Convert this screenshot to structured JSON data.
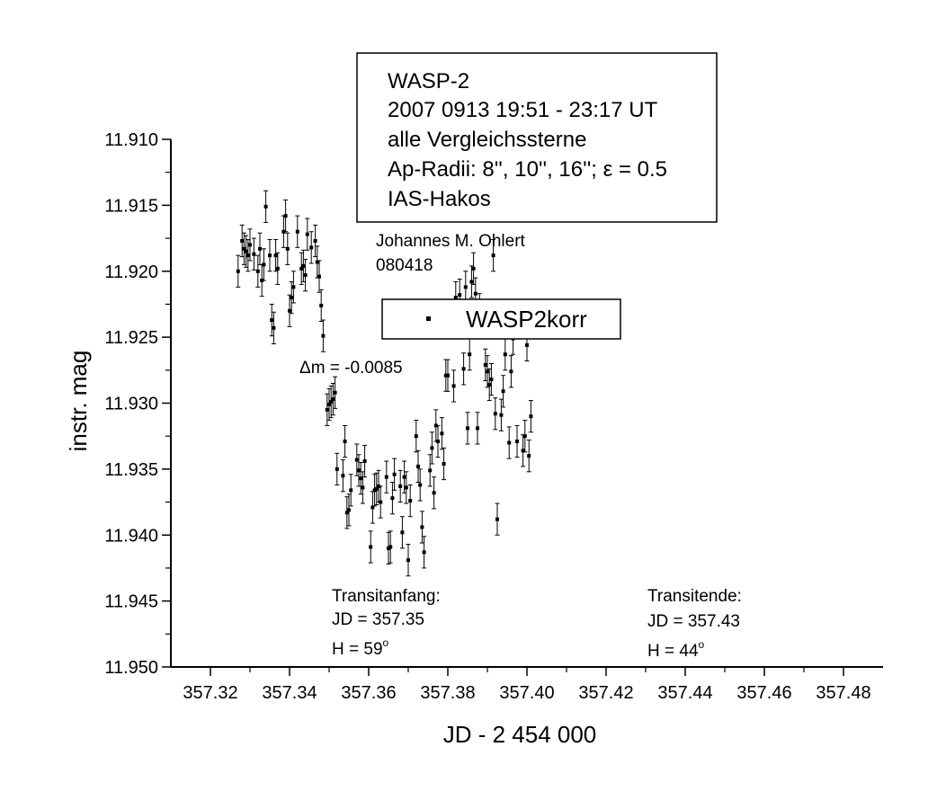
{
  "chart_data": {
    "type": "scatter",
    "xlabel": "JD - 2 454 000",
    "ylabel": "instr. mag",
    "xlim": [
      357.31,
      357.49
    ],
    "ylim": [
      11.95,
      11.91
    ],
    "y_inverted": true,
    "x_ticks": [
      "357.32",
      "357.34",
      "357.36",
      "357.38",
      "357.40",
      "357.42",
      "357.44",
      "357.46",
      "357.48"
    ],
    "y_ticks": [
      "11.910",
      "11.915",
      "11.920",
      "11.925",
      "11.930",
      "11.935",
      "11.940",
      "11.945",
      "11.950"
    ],
    "info_box": [
      "WASP-2",
      "2007 0913 19:51 - 23:17 UT",
      "alle Vergleichssterne",
      "Ap-Radii: 8'', 10'', 16''; ε = 0.5",
      "IAS-Hakos"
    ],
    "author": [
      "Johannes M. Ohlert",
      "080418"
    ],
    "legend": {
      "label": "WASP2korr",
      "placement": "upper-middle"
    },
    "offset_note": "Δm = -0.0085",
    "transit_start": {
      "label": "Transitanfang:",
      "jd": "JD = 357.35",
      "h": "H = 59",
      "deg": "o"
    },
    "transit_end": {
      "label": "Transitende:",
      "jd": "JD = 357.43",
      "h": "H = 44",
      "deg": "o"
    },
    "error_bar": 0.0012,
    "series": [
      {
        "name": "WASP2korr",
        "points": [
          [
            357.327,
            11.92
          ],
          [
            357.328,
            11.9177
          ],
          [
            357.3285,
            11.9183
          ],
          [
            357.329,
            11.9185
          ],
          [
            357.3295,
            11.9188
          ],
          [
            357.33,
            11.918
          ],
          [
            357.331,
            11.9187
          ],
          [
            357.332,
            11.92
          ],
          [
            357.3325,
            11.9183
          ],
          [
            357.333,
            11.9207
          ],
          [
            357.3335,
            11.9195
          ],
          [
            357.334,
            11.9151
          ],
          [
            357.335,
            11.9188
          ],
          [
            357.3355,
            11.9237
          ],
          [
            357.336,
            11.9243
          ],
          [
            357.3365,
            11.9188
          ],
          [
            357.337,
            11.9198
          ],
          [
            357.3385,
            11.917
          ],
          [
            357.339,
            11.9158
          ],
          [
            357.3395,
            11.9183
          ],
          [
            357.34,
            11.923
          ],
          [
            357.3405,
            11.922
          ],
          [
            357.341,
            11.9212
          ],
          [
            357.342,
            11.917
          ],
          [
            357.343,
            11.9198
          ],
          [
            357.3435,
            11.9196
          ],
          [
            357.344,
            11.9203
          ],
          [
            357.3445,
            11.9172
          ],
          [
            357.3455,
            11.9182
          ],
          [
            357.3465,
            11.9177
          ],
          [
            357.347,
            11.9193
          ],
          [
            357.3475,
            11.9204
          ],
          [
            357.348,
            11.9226
          ],
          [
            357.3485,
            11.9249
          ],
          [
            357.3495,
            11.9305
          ],
          [
            357.35,
            11.9301
          ],
          [
            357.3505,
            11.9299
          ],
          [
            357.351,
            11.9297
          ],
          [
            357.3515,
            11.9292
          ],
          [
            357.352,
            11.935
          ],
          [
            357.3535,
            11.9355
          ],
          [
            357.354,
            11.9329
          ],
          [
            357.3545,
            11.9383
          ],
          [
            357.355,
            11.9381
          ],
          [
            357.3555,
            11.9366
          ],
          [
            357.357,
            11.9343
          ],
          [
            357.3575,
            11.9351
          ],
          [
            357.358,
            11.9357
          ],
          [
            357.3585,
            11.9364
          ],
          [
            357.359,
            11.9344
          ],
          [
            357.3605,
            11.9409
          ],
          [
            357.361,
            11.9379
          ],
          [
            357.3615,
            11.9366
          ],
          [
            357.362,
            11.9365
          ],
          [
            357.3625,
            11.9363
          ],
          [
            357.363,
            11.9375
          ],
          [
            357.3645,
            11.9356
          ],
          [
            357.365,
            11.941
          ],
          [
            357.3655,
            11.9409
          ],
          [
            357.366,
            11.9372
          ],
          [
            357.3665,
            11.9354
          ],
          [
            357.368,
            11.9363
          ],
          [
            357.3685,
            11.9398
          ],
          [
            357.369,
            11.9356
          ],
          [
            357.3695,
            11.9364
          ],
          [
            357.37,
            11.9419
          ],
          [
            357.3705,
            11.9374
          ],
          [
            357.372,
            11.9325
          ],
          [
            357.3725,
            11.9348
          ],
          [
            357.373,
            11.9362
          ],
          [
            357.3735,
            11.9394
          ],
          [
            357.374,
            11.9413
          ],
          [
            357.3755,
            11.9351
          ],
          [
            357.376,
            11.9334
          ],
          [
            357.3765,
            11.9368
          ],
          [
            357.377,
            11.9317
          ],
          [
            357.3775,
            11.9329
          ],
          [
            357.3785,
            11.9323
          ],
          [
            357.379,
            11.9346
          ],
          [
            357.3795,
            11.9279
          ],
          [
            357.38,
            11.9279
          ],
          [
            357.3815,
            11.9287
          ],
          [
            357.382,
            11.922
          ],
          [
            357.3825,
            11.9236
          ],
          [
            357.383,
            11.9218
          ],
          [
            357.3835,
            11.9238
          ],
          [
            357.384,
            11.9274
          ],
          [
            357.3845,
            11.9212
          ],
          [
            357.385,
            11.9319
          ],
          [
            357.3855,
            11.9263
          ],
          [
            357.386,
            11.9208
          ],
          [
            357.3865,
            11.9198
          ],
          [
            357.387,
            11.9217
          ],
          [
            357.3875,
            11.9319
          ],
          [
            357.388,
            11.9229
          ],
          [
            357.3895,
            11.9271
          ],
          [
            357.39,
            11.9276
          ],
          [
            357.3905,
            11.9286
          ],
          [
            357.391,
            11.9282
          ],
          [
            357.3915,
            11.9188
          ],
          [
            357.392,
            11.9308
          ],
          [
            357.3925,
            11.9388
          ],
          [
            357.3935,
            11.9309
          ],
          [
            357.394,
            11.9291
          ],
          [
            357.3945,
            11.9263
          ],
          [
            357.3955,
            11.933
          ],
          [
            357.396,
            11.9276
          ],
          [
            357.3965,
            11.9251
          ],
          [
            357.397,
            11.9236
          ],
          [
            357.3975,
            11.9329
          ],
          [
            357.399,
            11.9336
          ],
          [
            357.3995,
            11.9325
          ],
          [
            357.4,
            11.9256
          ],
          [
            357.4005,
            11.934
          ],
          [
            357.401,
            11.931
          ]
        ]
      }
    ]
  }
}
